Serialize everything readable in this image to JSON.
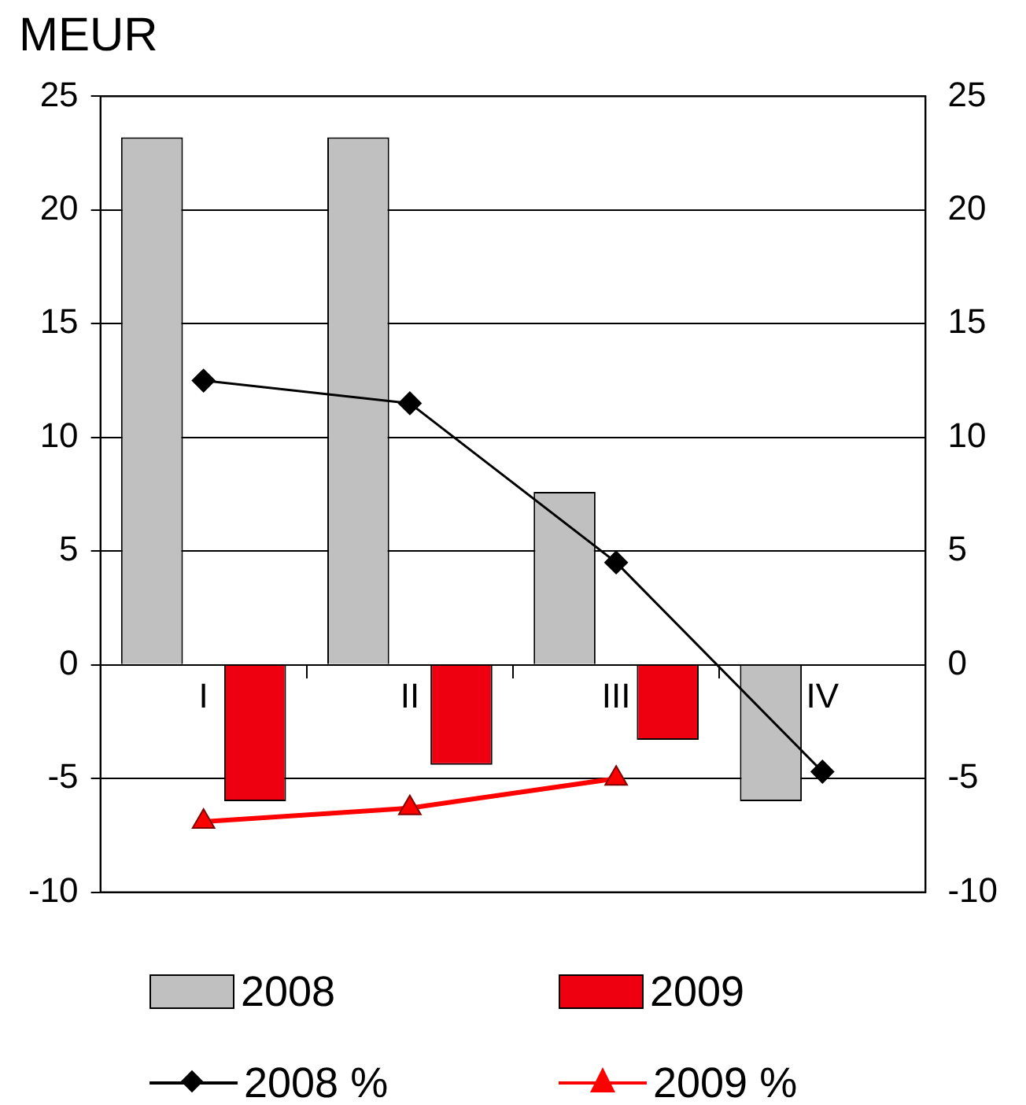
{
  "chart_data": {
    "type": "bar",
    "ylabel": "MEUR",
    "categories": [
      "I",
      "II",
      "III",
      "IV"
    ],
    "series": [
      {
        "name": "2008",
        "color": "#c0c0c0",
        "values": [
          23.2,
          23.2,
          7.6,
          -6.0
        ]
      },
      {
        "name": "2009",
        "color": "#ee0010",
        "values": [
          -6.0,
          -4.4,
          -3.3,
          null
        ]
      },
      {
        "name": "2008 %",
        "type": "line",
        "marker": "diamond",
        "color": "#000000",
        "values": [
          12.5,
          11.5,
          4.5,
          -4.7
        ]
      },
      {
        "name": "2009 %",
        "type": "line",
        "marker": "triangle",
        "color": "#ff0000",
        "values": [
          -6.9,
          -6.3,
          -5.0,
          null
        ]
      }
    ],
    "ylim": [
      -10,
      25
    ],
    "yticks": [
      -10,
      -5,
      0,
      5,
      10,
      15,
      20,
      25
    ],
    "y2lim": [
      -10,
      25
    ],
    "y2ticks": [
      -10,
      -5,
      0,
      5,
      10,
      15,
      20,
      25
    ],
    "grid": "y",
    "legend": "bottom"
  }
}
